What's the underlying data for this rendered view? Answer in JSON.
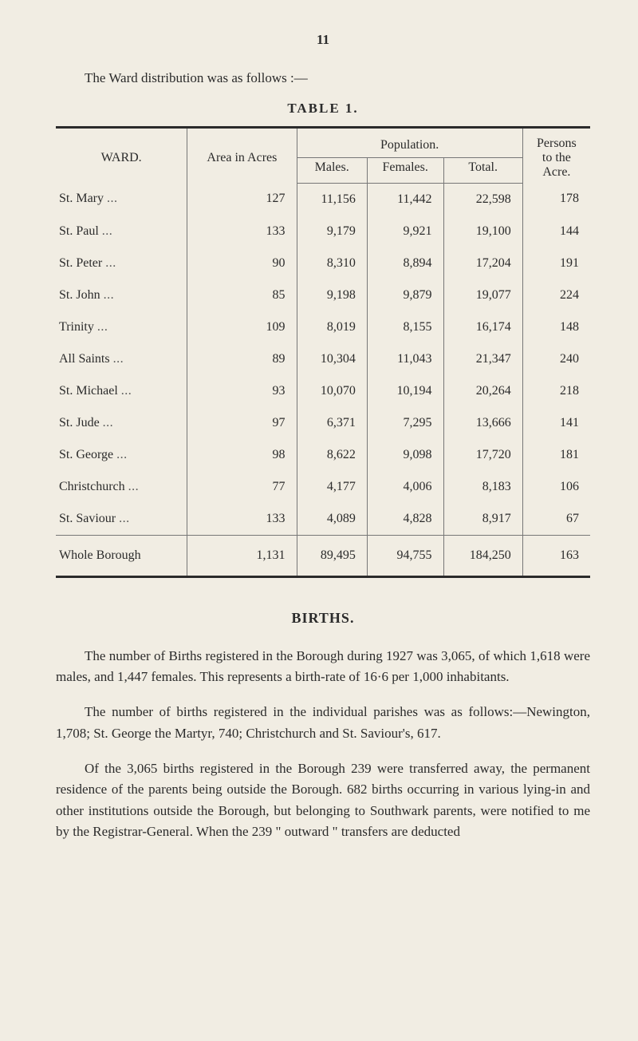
{
  "page_number": "11",
  "intro": "The Ward distribution was as follows :—",
  "table": {
    "title": "TABLE 1.",
    "type": "table",
    "background_color": "#f1ede3",
    "border_color": "#2b2b2b",
    "inner_line_color": "#777777",
    "text_color": "#2b2b2b",
    "font_size_pt": 12,
    "columns": [
      {
        "key": "ward",
        "label": "WARD.",
        "align": "left"
      },
      {
        "key": "area",
        "label": "Area in Acres",
        "align": "right"
      },
      {
        "key": "males",
        "label": "Males.",
        "align": "right"
      },
      {
        "key": "females",
        "label": "Females.",
        "align": "right"
      },
      {
        "key": "total",
        "label": "Total.",
        "align": "right"
      },
      {
        "key": "per_acre",
        "label": "Persons to the Acre.",
        "align": "right"
      }
    ],
    "population_group_label": "Population.",
    "persons_label_line1": "Persons",
    "persons_label_line2": "to the",
    "persons_label_line3": "Acre.",
    "rows": [
      {
        "ward": "St. Mary",
        "area": "127",
        "males": "11,156",
        "females": "11,442",
        "total": "22,598",
        "per_acre": "178"
      },
      {
        "ward": "St. Paul",
        "area": "133",
        "males": "9,179",
        "females": "9,921",
        "total": "19,100",
        "per_acre": "144"
      },
      {
        "ward": "St. Peter",
        "area": "90",
        "males": "8,310",
        "females": "8,894",
        "total": "17,204",
        "per_acre": "191"
      },
      {
        "ward": "St. John",
        "area": "85",
        "males": "9,198",
        "females": "9,879",
        "total": "19,077",
        "per_acre": "224"
      },
      {
        "ward": "Trinity",
        "area": "109",
        "males": "8,019",
        "females": "8,155",
        "total": "16,174",
        "per_acre": "148"
      },
      {
        "ward": "All Saints",
        "area": "89",
        "males": "10,304",
        "females": "11,043",
        "total": "21,347",
        "per_acre": "240"
      },
      {
        "ward": "St. Michael",
        "area": "93",
        "males": "10,070",
        "females": "10,194",
        "total": "20,264",
        "per_acre": "218"
      },
      {
        "ward": "St. Jude",
        "area": "97",
        "males": "6,371",
        "females": "7,295",
        "total": "13,666",
        "per_acre": "141"
      },
      {
        "ward": "St. George",
        "area": "98",
        "males": "8,622",
        "females": "9,098",
        "total": "17,720",
        "per_acre": "181"
      },
      {
        "ward": "Christchurch",
        "area": "77",
        "males": "4,177",
        "females": "4,006",
        "total": "8,183",
        "per_acre": "106"
      },
      {
        "ward": "St. Saviour",
        "area": "133",
        "males": "4,089",
        "females": "4,828",
        "total": "8,917",
        "per_acre": "67"
      }
    ],
    "total_row": {
      "ward": "Whole Borough",
      "area": "1,131",
      "males": "89,495",
      "females": "94,755",
      "total": "184,250",
      "per_acre": "163"
    },
    "leader_dots": "..."
  },
  "births": {
    "heading": "BIRTHS.",
    "paragraphs": [
      "The number of Births registered in the Borough during 1927 was 3,065, of which 1,618 were males, and 1,447 females. This represents a birth-rate of 16·6 per 1,000 inhabitants.",
      "The number of births registered in the individual parishes was as follows:—Newington, 1,708; St. George the Martyr, 740; Christchurch and St. Saviour's, 617.",
      "Of the 3,065 births registered in the Borough 239 were transferred away, the permanent residence of the parents being outside the Borough. 682 births occurring in various lying-in and other institutions outside the Borough, but belonging to Southwark parents, were notified to me by the Registrar-General. When the 239 \" outward \" transfers are deducted"
    ]
  }
}
